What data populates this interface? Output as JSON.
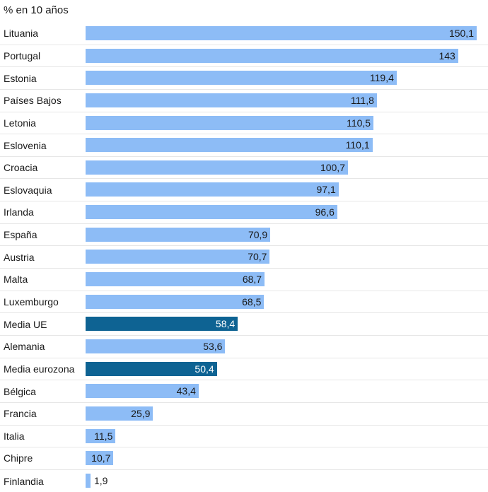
{
  "chart_data": {
    "type": "bar",
    "orientation": "horizontal",
    "title": "% en 10 años",
    "categories": [
      "Lituania",
      "Portugal",
      "Estonia",
      "Países Bajos",
      "Letonia",
      "Eslovenia",
      "Croacia",
      "Eslovaquia",
      "Irlanda",
      "España",
      "Austria",
      "Malta",
      "Luxemburgo",
      "Media UE",
      "Alemania",
      "Media eurozona",
      "Bélgica",
      "Francia",
      "Italia",
      "Chipre",
      "Finlandia"
    ],
    "values": [
      150.1,
      143,
      119.4,
      111.8,
      110.5,
      110.1,
      100.7,
      97.1,
      96.6,
      70.9,
      70.7,
      68.7,
      68.5,
      58.4,
      53.6,
      50.4,
      43.4,
      25.9,
      11.5,
      10.7,
      1.9
    ],
    "value_labels": [
      "150,1",
      "143",
      "119,4",
      "111,8",
      "110,5",
      "110,1",
      "100,7",
      "97,1",
      "96,6",
      "70,9",
      "70,7",
      "68,7",
      "68,5",
      "58,4",
      "53,6",
      "50,4",
      "43,4",
      "25,9",
      "11,5",
      "10,7",
      "1,9"
    ],
    "highlighted": [
      "Media UE",
      "Media eurozona"
    ],
    "xlim": [
      0,
      152
    ],
    "xlabel": "",
    "ylabel": "",
    "grid": false,
    "legend": "none",
    "colors": {
      "bar": "#8dbcf6",
      "highlight": "#0e6393",
      "text": "#1a1a1a",
      "highlight_text": "#ffffff",
      "separator": "#e6e6e6"
    }
  }
}
